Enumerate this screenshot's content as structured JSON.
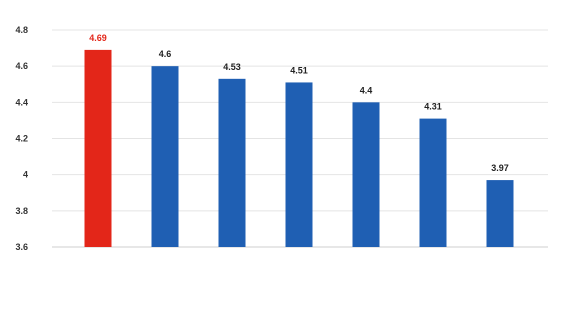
{
  "chart_data": {
    "type": "bar",
    "title": "",
    "xlabel": "",
    "ylabel": "",
    "ylim": [
      3.6,
      4.8
    ],
    "yticks": [
      3.6,
      3.8,
      4,
      4.2,
      4.4,
      4.6,
      4.8
    ],
    "ytick_labels": [
      "3.6",
      "3.8",
      "4",
      "4.2",
      "4.4",
      "4.6",
      "4.8"
    ],
    "grid": true,
    "legend": "none",
    "categories": [
      "",
      "",
      "",
      "",
      "",
      "",
      ""
    ],
    "values": [
      4.69,
      4.6,
      4.53,
      4.51,
      4.4,
      4.31,
      3.97
    ],
    "value_labels": [
      "4.69",
      "4.6",
      "4.53",
      "4.51",
      "4.4",
      "4.31",
      "3.97"
    ],
    "colors": {
      "highlight": "#e32619",
      "default": "#1f5fb3",
      "highlight_label": "#e32619",
      "default_label": "#222222"
    },
    "highlight_index": 0
  }
}
